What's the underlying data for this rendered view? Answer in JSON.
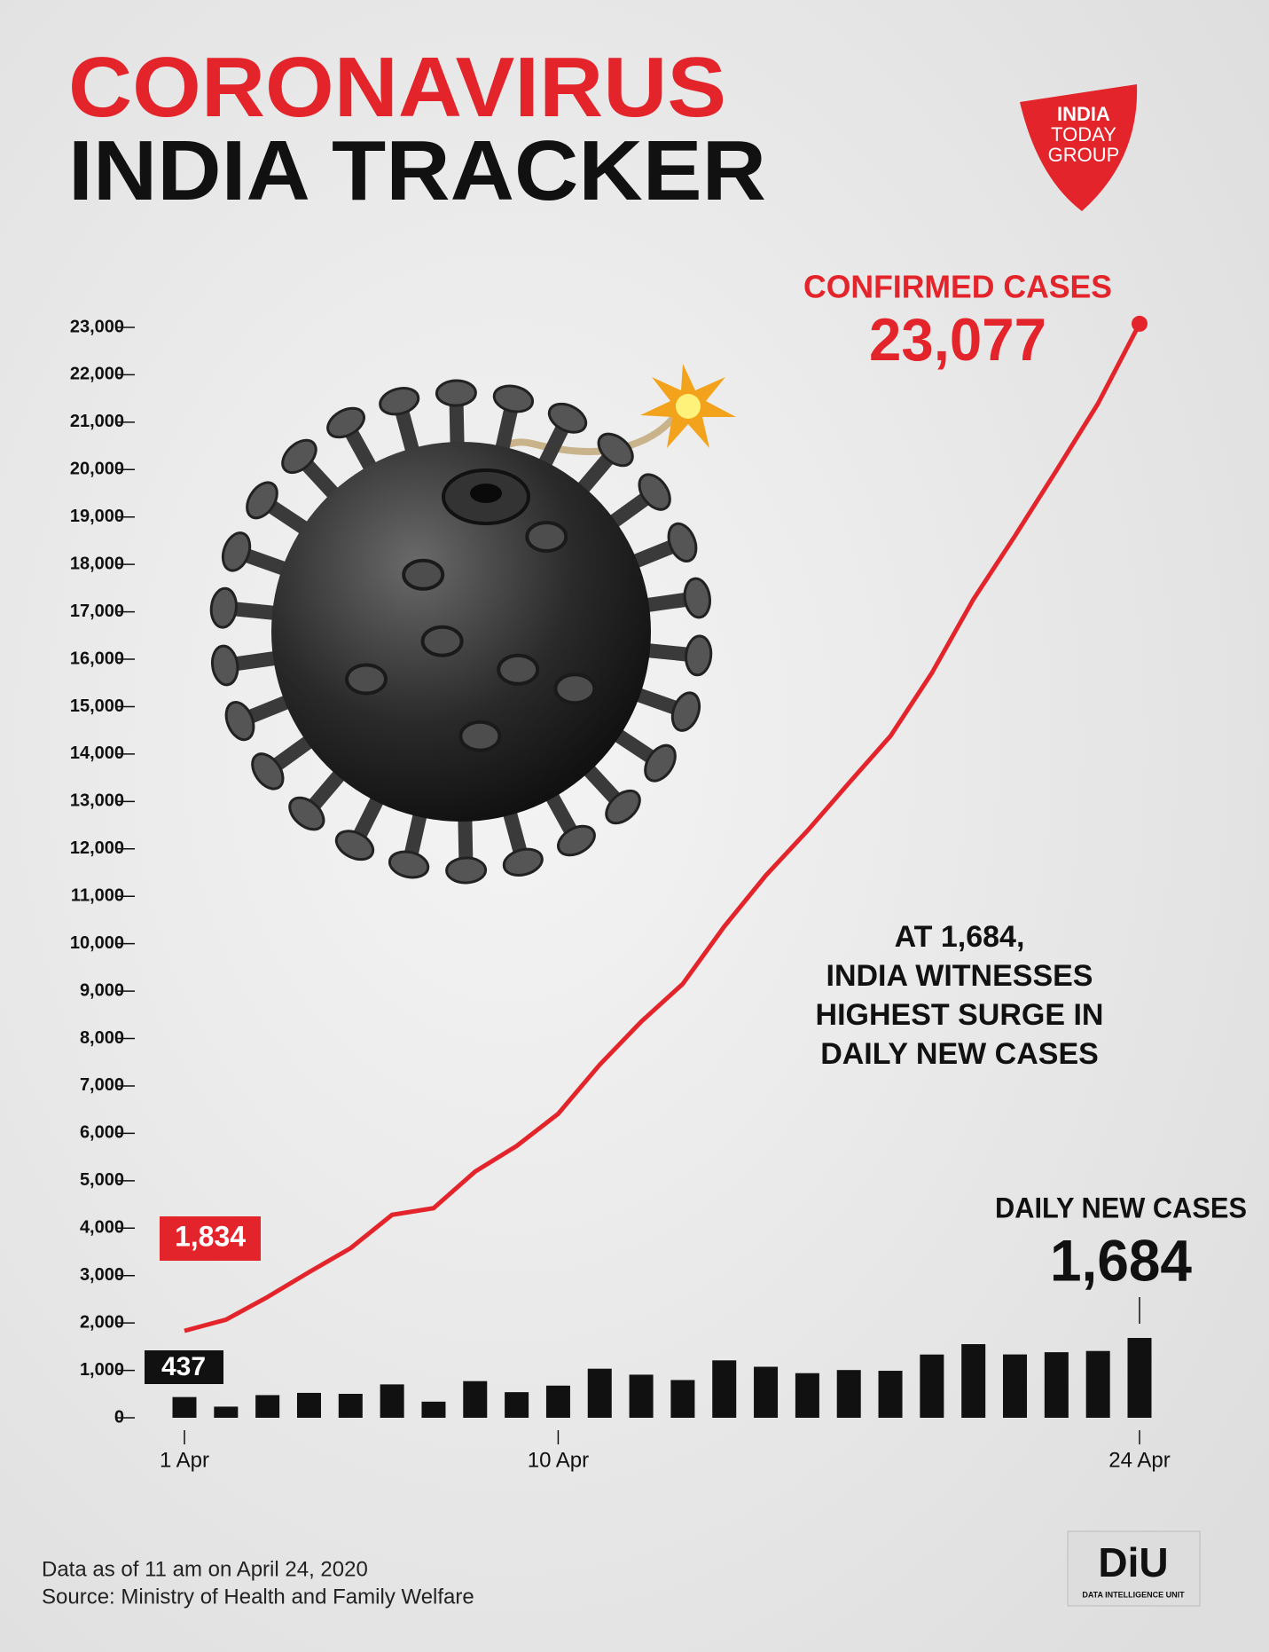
{
  "chart_data": {
    "type": "combo",
    "title": "CORONAVIRUS",
    "subtitle": "INDIA TRACKER",
    "categories": [
      "1 Apr",
      null,
      null,
      null,
      null,
      null,
      null,
      null,
      null,
      "10 Apr",
      null,
      null,
      null,
      null,
      null,
      null,
      null,
      null,
      null,
      null,
      null,
      null,
      null,
      "24 Apr"
    ],
    "series": [
      {
        "name": "CONFIRMED CASES",
        "type": "line",
        "color": "#e3242b",
        "values": [
          1834,
          2069,
          2547,
          3072,
          3577,
          4281,
          4421,
          5194,
          5734,
          6412,
          7447,
          8356,
          9152,
          10363,
          11439,
          12380,
          13387,
          14378,
          15712,
          17265,
          18601,
          19984,
          21393,
          23077
        ],
        "value_labels": [
          "1,834",
          null,
          null,
          null,
          null,
          null,
          null,
          null,
          null,
          null,
          null,
          null,
          null,
          null,
          null,
          null,
          null,
          null,
          null,
          null,
          null,
          null,
          null,
          "23,077"
        ]
      },
      {
        "name": "DAILY NEW CASES",
        "type": "bar",
        "color": "#111111",
        "values": [
          437,
          235,
          478,
          525,
          505,
          704,
          340,
          773,
          540,
          678,
          1035,
          909,
          796,
          1211,
          1076,
          941,
          1007,
          991,
          1334,
          1553,
          1336,
          1383,
          1409,
          1684
        ],
        "value_labels": [
          "437",
          null,
          null,
          null,
          null,
          null,
          null,
          null,
          null,
          null,
          null,
          null,
          null,
          null,
          null,
          null,
          null,
          null,
          null,
          null,
          null,
          null,
          null,
          "1,684"
        ]
      }
    ],
    "ylim": [
      0,
      23000
    ],
    "yticks": [
      0,
      {
        "value": 1000,
        "label": "1,000"
      },
      {
        "value": 2000,
        "label": "2,000"
      },
      {
        "value": 3000,
        "label": "3,000"
      },
      {
        "value": 4000,
        "label": "4,000"
      },
      {
        "value": 5000,
        "label": "5,000"
      },
      {
        "value": 6000,
        "label": "6,000"
      },
      {
        "value": 7000,
        "label": "7,000"
      },
      {
        "value": 8000,
        "label": "8,000"
      },
      {
        "value": 9000,
        "label": "9,000"
      },
      {
        "value": 10000,
        "label": "10,000"
      },
      {
        "value": 11000,
        "label": "11,000"
      },
      {
        "value": 12000,
        "label": "12,000"
      },
      {
        "value": 13000,
        "label": "13,000"
      },
      {
        "value": 14000,
        "label": "14,000"
      },
      {
        "value": 15000,
        "label": "15,000"
      },
      {
        "value": 16000,
        "label": "16,000"
      },
      {
        "value": 17000,
        "label": "17,000"
      },
      {
        "value": 18000,
        "label": "18,000"
      },
      {
        "value": 19000,
        "label": "19,000"
      },
      {
        "value": 20000,
        "label": "20,000"
      },
      {
        "value": 21000,
        "label": "21,000"
      },
      {
        "value": 22000,
        "label": "22,000"
      },
      {
        "value": 23000,
        "label": "23,000"
      }
    ],
    "grid": false,
    "annotation": [
      "AT 1,684,",
      "INDIA WITNESSES",
      "HIGHEST SURGE IN",
      "DAILY NEW CASES"
    ],
    "notes": [
      "Data as of 11 am on April 24, 2020",
      "Source: Ministry of Health and Family Welfare"
    ]
  },
  "branding": {
    "publisher": [
      "INDIA",
      "TODAY",
      "GROUP"
    ],
    "unit": {
      "name": "DiU",
      "tagline": "DATA INTELLIGENCE UNIT"
    }
  }
}
